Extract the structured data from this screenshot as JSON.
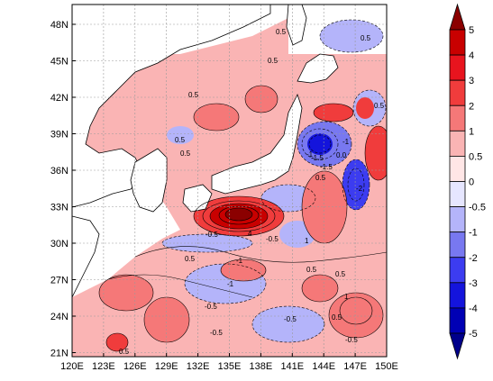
{
  "map": {
    "lon_ticks": [
      "120E",
      "123E",
      "126E",
      "129E",
      "132E",
      "135E",
      "138E",
      "141E",
      "144E",
      "147E",
      "150E"
    ],
    "lat_ticks": [
      "48N",
      "45N",
      "42N",
      "39N",
      "36N",
      "33N",
      "30N",
      "27N",
      "24N",
      "21N"
    ],
    "contour_labels": [
      "0.5",
      "0.5",
      "0.5",
      "0.5",
      "-0.5",
      "-0.5",
      "-1",
      "-1",
      "0.5",
      "4",
      "-1",
      "-0.5",
      "1",
      "0.5",
      "-1",
      "0.5",
      "-0.5",
      "0.5",
      "1",
      "-0.5",
      "-2",
      "-1.5",
      "0.5",
      "-0.5",
      "0.5",
      "0.5",
      "0.5",
      "0.5",
      "-1.5",
      "0.0"
    ]
  },
  "colorbar": {
    "levels": [
      "5",
      "4",
      "3",
      "2",
      "1",
      "0.5",
      "0",
      "-0.5",
      "-1",
      "-2",
      "-3",
      "-4",
      "-5"
    ],
    "colors": [
      "#8b0000",
      "#c80000",
      "#e8141e",
      "#f03c3c",
      "#f57878",
      "#fab4b4",
      "#ffe6e6",
      "#e6e6ff",
      "#b4b4fa",
      "#7878f0",
      "#3c3cf0",
      "#1414dc",
      "#0000b4",
      "#00008b"
    ]
  }
}
